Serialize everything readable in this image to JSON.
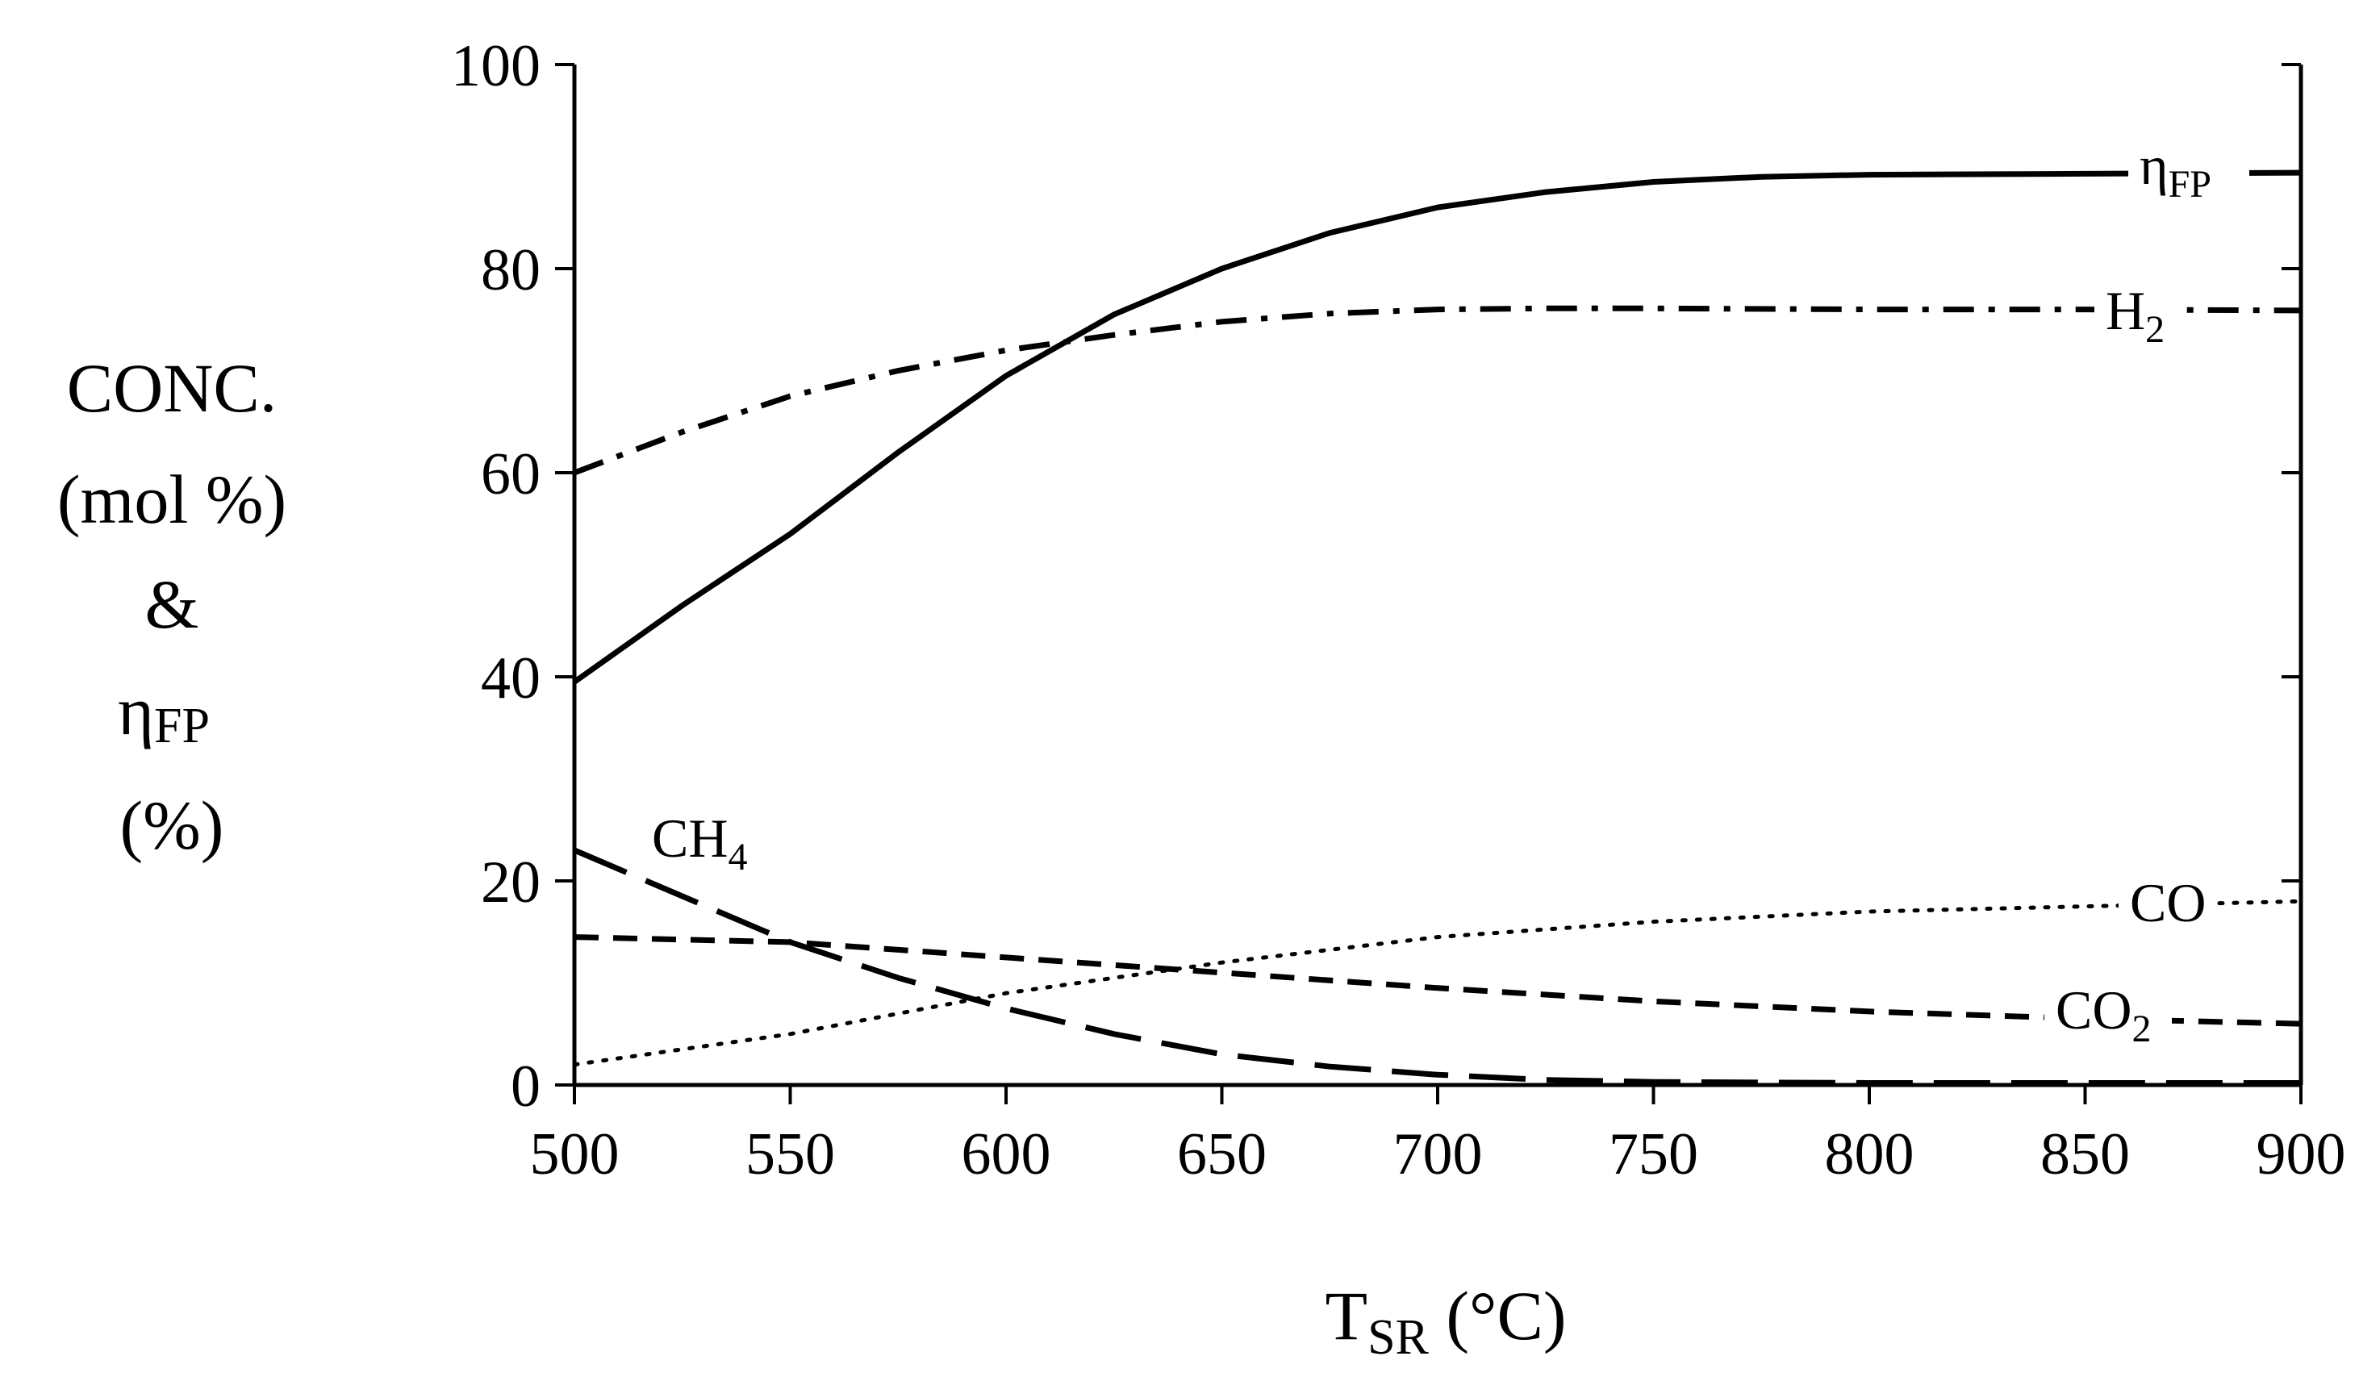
{
  "chart_data": {
    "type": "line",
    "title": "",
    "xlabel": {
      "main": "T",
      "sub": "SR",
      "unit": " (°C)"
    },
    "ylabel": {
      "lines": [
        "CONC.",
        "(mol %)",
        "&"
      ],
      "eta_main": "η",
      "eta_sub": "FP",
      "last": "(%)"
    },
    "xlim": [
      500,
      900
    ],
    "ylim": [
      0,
      100
    ],
    "xticks": [
      500,
      550,
      600,
      650,
      700,
      750,
      800,
      850,
      900
    ],
    "yticks": [
      0,
      20,
      40,
      60,
      80,
      100
    ],
    "grid": false,
    "series": [
      {
        "name": "ηFP",
        "label_main": "η",
        "label_sub": "FP",
        "style": "solid",
        "x": [
          500,
          525,
          550,
          575,
          600,
          625,
          650,
          675,
          700,
          725,
          750,
          775,
          800,
          850,
          900
        ],
        "y": [
          39.5,
          47,
          54,
          62,
          69.5,
          75.5,
          80,
          83.5,
          86,
          87.5,
          88.5,
          89,
          89.2,
          89.3,
          89.4
        ]
      },
      {
        "name": "H2",
        "label_main": "H",
        "label_sub": "2",
        "style": "dashdot",
        "x": [
          500,
          525,
          550,
          575,
          600,
          625,
          650,
          675,
          700,
          725,
          750,
          800,
          850,
          900
        ],
        "y": [
          60,
          64,
          67.5,
          70,
          72,
          73.5,
          74.8,
          75.6,
          76,
          76.1,
          76.1,
          76,
          76,
          75.9
        ]
      },
      {
        "name": "CH4",
        "label_main": "CH",
        "label_sub": "4",
        "style": "longdash",
        "x": [
          500,
          525,
          550,
          575,
          600,
          625,
          650,
          675,
          700,
          725,
          750,
          800,
          900
        ],
        "y": [
          23,
          18.5,
          14,
          10.5,
          7.5,
          5,
          3,
          1.8,
          1,
          0.5,
          0.3,
          0.2,
          0.2
        ]
      },
      {
        "name": "CO",
        "label_main": "CO",
        "label_sub": "",
        "style": "dotted",
        "x": [
          500,
          550,
          600,
          650,
          700,
          750,
          800,
          850,
          900
        ],
        "y": [
          2,
          5,
          9,
          12,
          14.5,
          16,
          17,
          17.5,
          18
        ]
      },
      {
        "name": "CO2",
        "label_main": "CO",
        "label_sub": "2",
        "style": "dashed",
        "x": [
          500,
          550,
          600,
          650,
          700,
          750,
          800,
          850,
          900
        ],
        "y": [
          14.5,
          14,
          12.5,
          11,
          9.5,
          8.2,
          7.2,
          6.5,
          6
        ]
      }
    ]
  }
}
